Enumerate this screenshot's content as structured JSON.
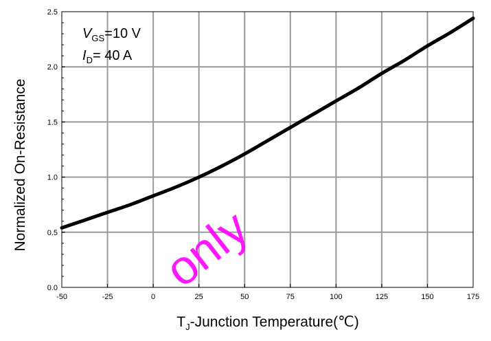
{
  "chart_data": {
    "type": "line",
    "xlabel_main": "T",
    "xlabel_sub": "J",
    "xlabel_rest": "-Junction Temperature(℃)",
    "ylabel": "Normalized On-Resistance",
    "xlim": [
      -50,
      175
    ],
    "ylim": [
      0.0,
      2.5
    ],
    "x_ticks": [
      "-50",
      "-25",
      "0",
      "25",
      "50",
      "75",
      "100",
      "125",
      "150",
      "175"
    ],
    "y_ticks": [
      "0.0",
      "0.5",
      "1.0",
      "1.5",
      "2.0",
      "2.5"
    ],
    "grid": true,
    "annotations": {
      "vgs_symbol": "V",
      "vgs_sub": "GS",
      "vgs_value": "=10 V",
      "id_symbol": "I",
      "id_sub": "D",
      "id_value": "= 40 A"
    },
    "series": [
      {
        "x": [
          -50,
          -37.5,
          -25,
          -12.5,
          0,
          12.5,
          25,
          37.5,
          50,
          62.5,
          75,
          87.5,
          100,
          112.5,
          125,
          137.5,
          150,
          162.5,
          175
        ],
        "y": [
          0.54,
          0.61,
          0.68,
          0.75,
          0.83,
          0.91,
          1.0,
          1.1,
          1.21,
          1.33,
          1.45,
          1.57,
          1.69,
          1.81,
          1.94,
          2.06,
          2.19,
          2.31,
          2.44
        ]
      }
    ]
  },
  "watermark": {
    "text": "only",
    "color": "#ff00ff"
  }
}
